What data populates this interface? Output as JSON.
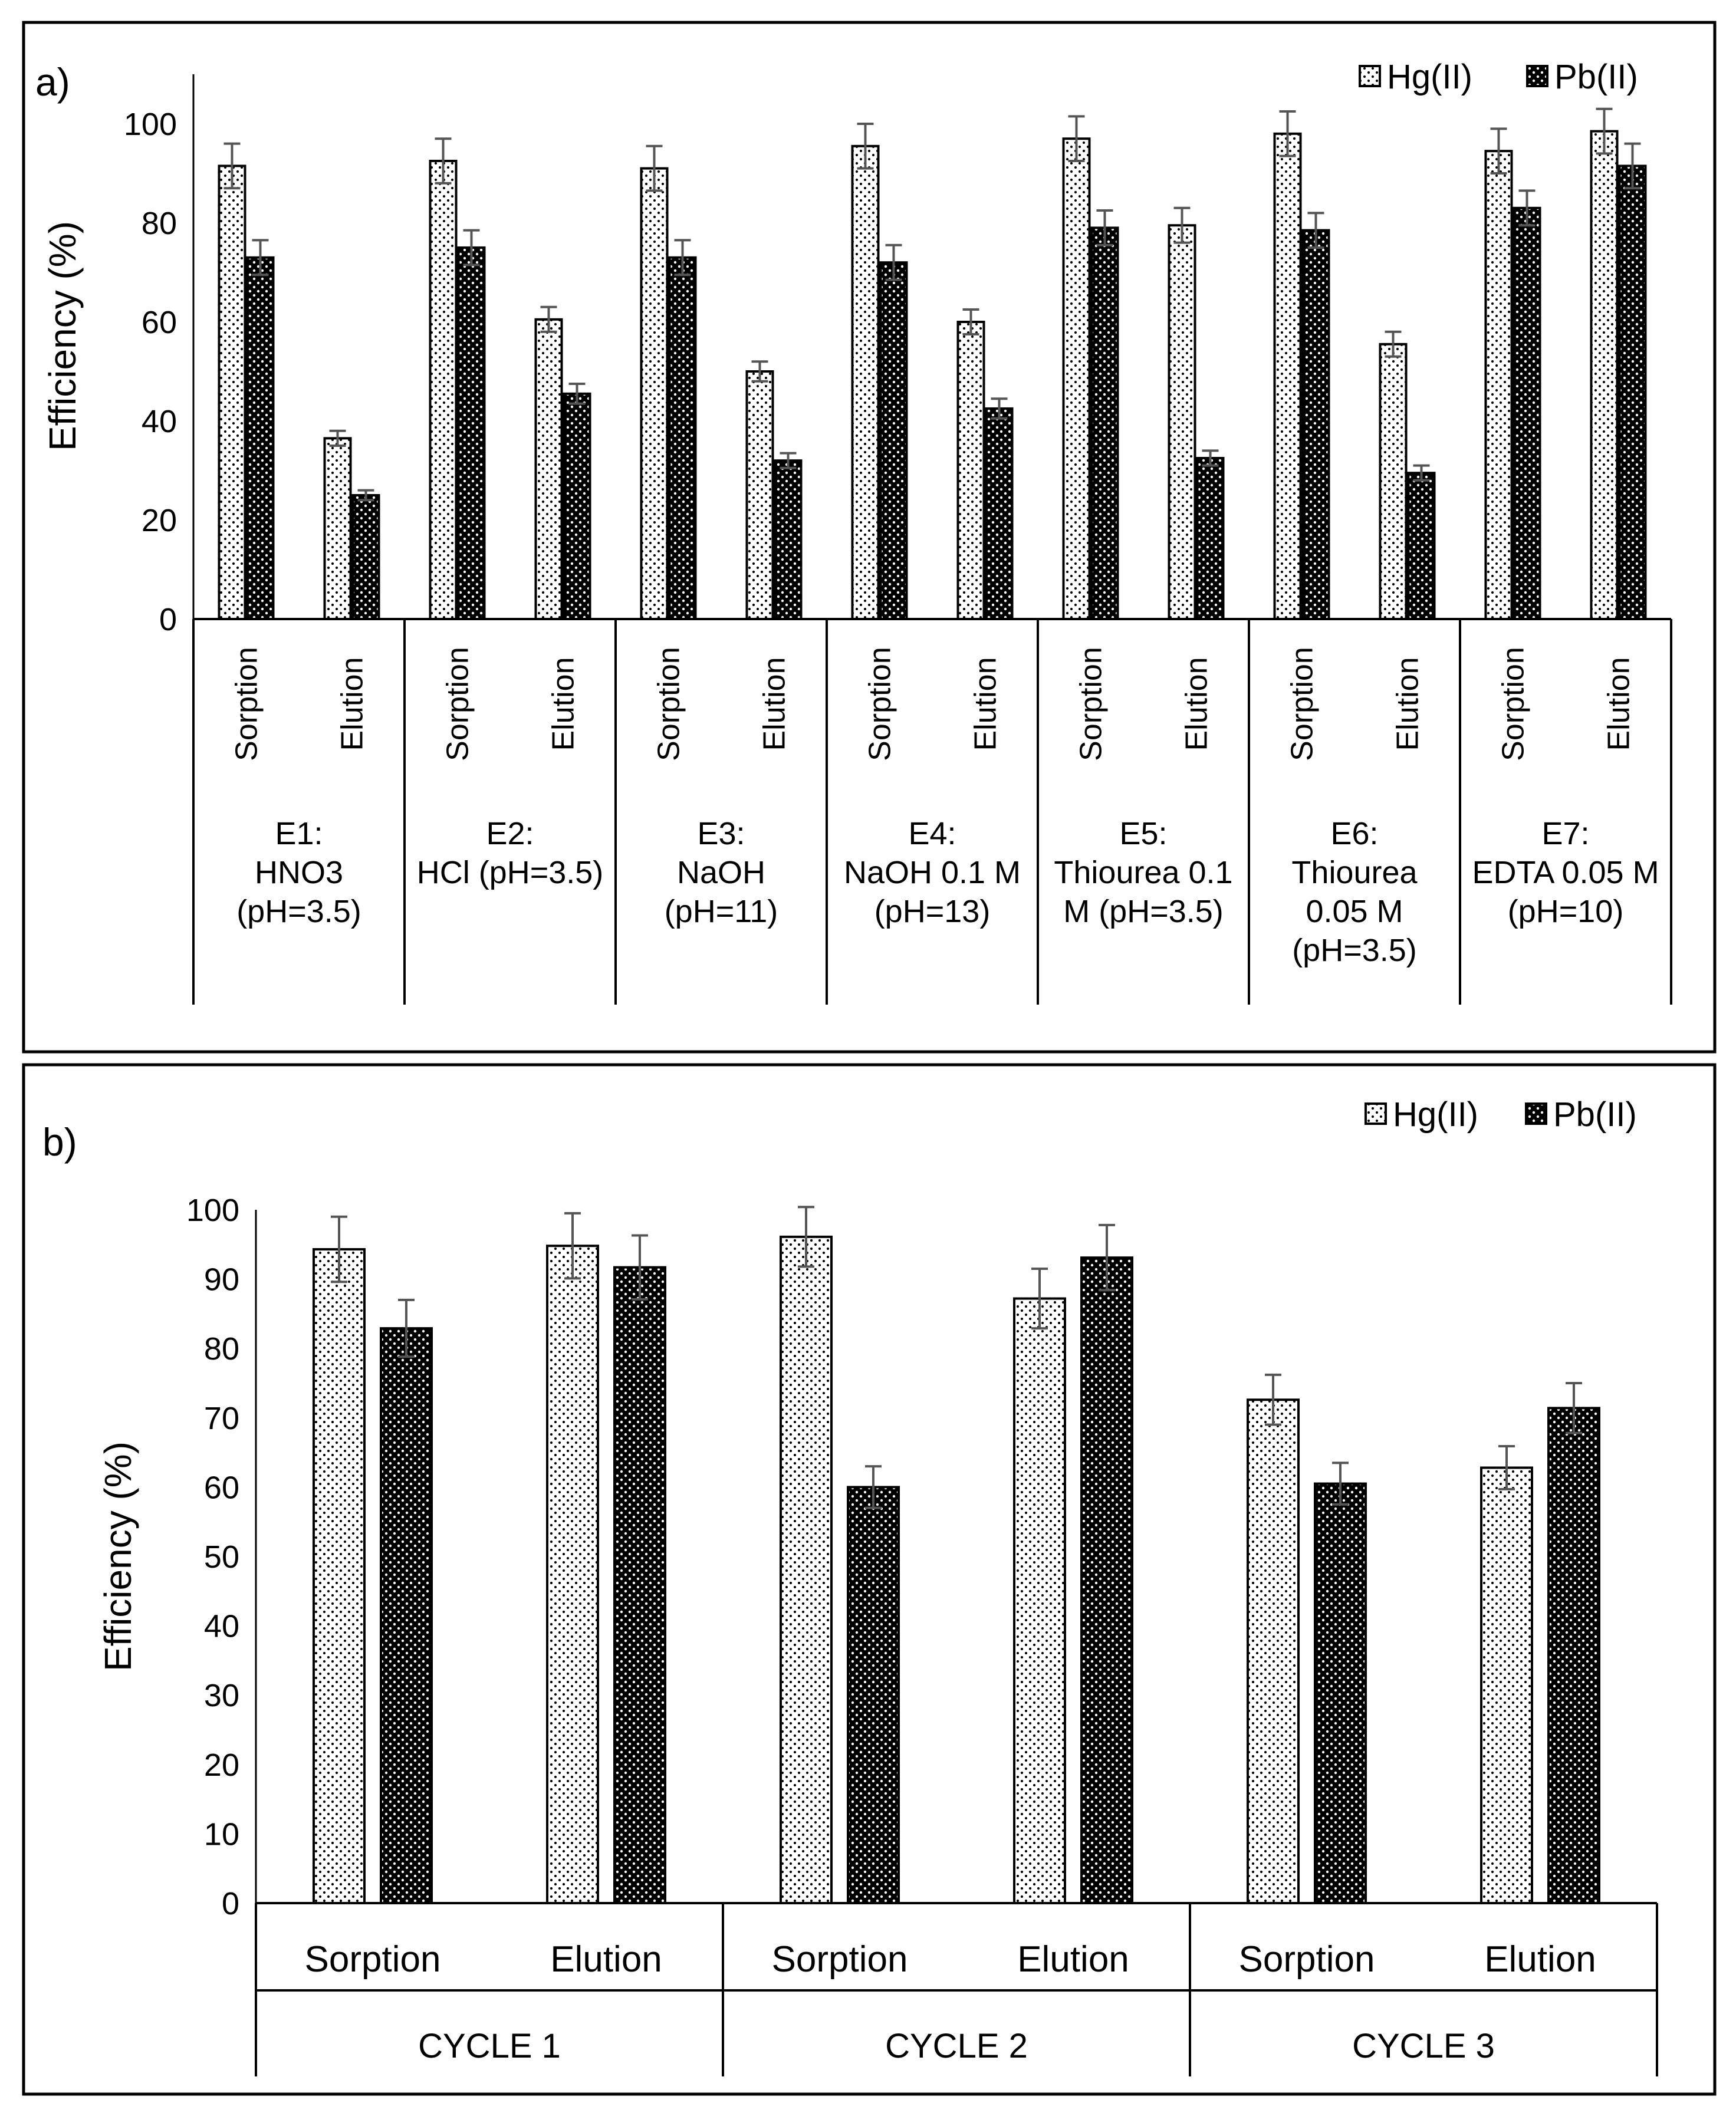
{
  "colors": {
    "hg_fill": "#ffffff",
    "pb_fill": "#000000",
    "dot_dark": "#000000",
    "dot_light": "#ffffff",
    "errorbar": "#555555",
    "frame": "#000000"
  },
  "chart_data": [
    {
      "type": "bar",
      "panel_label": "a)",
      "ylabel": "Efficiency (%)",
      "ylim": [
        0,
        110
      ],
      "yticks": [
        0,
        20,
        40,
        60,
        80,
        100
      ],
      "legend": [
        "Hg(II)",
        "Pb(II)"
      ],
      "legend_position": "top-right",
      "sub_categories": [
        "Sorption",
        "Elution"
      ],
      "groups": [
        {
          "label_lines": [
            "E1:",
            "HNO3",
            "(pH=3.5)"
          ]
        },
        {
          "label_lines": [
            "E2:",
            "HCl (pH=3.5)"
          ]
        },
        {
          "label_lines": [
            "E3:",
            "NaOH",
            "(pH=11)"
          ]
        },
        {
          "label_lines": [
            "E4:",
            "NaOH 0.1 M",
            "(pH=13)"
          ]
        },
        {
          "label_lines": [
            "E5:",
            "Thiourea 0.1",
            "M (pH=3.5)"
          ]
        },
        {
          "label_lines": [
            "E6:",
            "Thiourea",
            "0.05 M",
            "(pH=3.5)"
          ]
        },
        {
          "label_lines": [
            "E7:",
            "EDTA 0.05 M",
            "(pH=10)"
          ]
        }
      ],
      "series": [
        {
          "name": "Hg(II)",
          "pattern": "light-dots",
          "values": [
            91.5,
            36.5,
            92.5,
            60.5,
            91,
            50,
            95.5,
            60,
            97,
            79.5,
            98,
            55.5,
            94.5,
            98.5
          ],
          "errors": [
            4.5,
            1.5,
            4.5,
            2.5,
            4.5,
            2,
            4.5,
            2.5,
            4.5,
            3.5,
            4.5,
            2.5,
            4.5,
            4.5
          ]
        },
        {
          "name": "Pb(II)",
          "pattern": "dark-dots",
          "values": [
            73,
            25,
            75,
            45.5,
            73,
            32,
            72,
            42.5,
            79,
            32.5,
            78.5,
            29.5,
            83,
            91.5
          ],
          "errors": [
            3.5,
            1,
            3.5,
            2,
            3.5,
            1.5,
            3.5,
            2,
            3.5,
            1.5,
            3.5,
            1.5,
            3.5,
            4.5
          ]
        }
      ]
    },
    {
      "type": "bar",
      "panel_label": "b)",
      "ylabel": "Efficiency (%)",
      "ylim": [
        0,
        100
      ],
      "yticks": [
        0,
        10,
        20,
        30,
        40,
        50,
        60,
        70,
        80,
        90,
        100
      ],
      "legend": [
        "Hg(II)",
        "Pb(II)"
      ],
      "legend_position": "top-right",
      "sub_categories": [
        "Sorption",
        "Elution"
      ],
      "groups": [
        {
          "label_lines": [
            "CYCLE 1"
          ]
        },
        {
          "label_lines": [
            "CYCLE 2"
          ]
        },
        {
          "label_lines": [
            "CYCLE 3"
          ]
        }
      ],
      "series": [
        {
          "name": "Hg(II)",
          "pattern": "light-dots",
          "values": [
            94.3,
            94.8,
            96.1,
            87.2,
            72.6,
            62.8
          ],
          "errors": [
            4.7,
            4.7,
            4.3,
            4.3,
            3.6,
            3.1
          ]
        },
        {
          "name": "Pb(II)",
          "pattern": "dark-dots",
          "values": [
            82.9,
            91.7,
            60,
            93.1,
            60.5,
            71.4
          ],
          "errors": [
            4.1,
            4.6,
            3,
            4.7,
            3,
            3.6
          ]
        }
      ]
    }
  ]
}
